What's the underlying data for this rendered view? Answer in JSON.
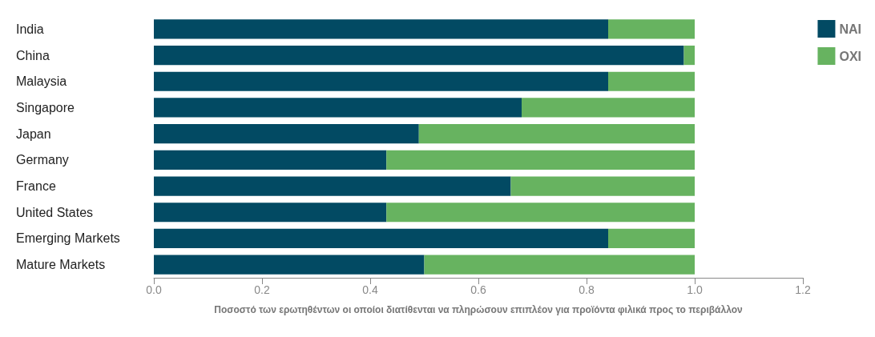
{
  "chart_data": {
    "type": "bar",
    "orientation": "horizontal",
    "stacked": true,
    "xlabel": "Ποσοστό των ερωτηθέντων οι οποίοι διατίθενται να πληρώσουν επιπλέον για προϊόντα φιλικά προς το περιβάλλον",
    "categories": [
      "India",
      "China",
      "Malaysia",
      "Singapore",
      "Japan",
      "Germany",
      "France",
      "United States",
      "Emerging Markets",
      "Mature Markets"
    ],
    "series": [
      {
        "name": "NAI",
        "color": "#024a63",
        "values": [
          0.84,
          0.98,
          0.84,
          0.68,
          0.49,
          0.43,
          0.66,
          0.43,
          0.84,
          0.5
        ]
      },
      {
        "name": "OXI",
        "color": "#67b360",
        "values": [
          0.16,
          0.02,
          0.16,
          0.32,
          0.51,
          0.57,
          0.34,
          0.57,
          0.16,
          0.5
        ]
      }
    ],
    "xlim": [
      0,
      1.2
    ],
    "xticks": [
      {
        "value": 0,
        "label": "0.0"
      },
      {
        "value": 0.2,
        "label": "0.2"
      },
      {
        "value": 0.4,
        "label": "0.4"
      },
      {
        "value": 0.6,
        "label": "0.6"
      },
      {
        "value": 0.8,
        "label": "0.8"
      },
      {
        "value": 1,
        "label": "1.0"
      },
      {
        "value": 1.2,
        "label": "1.2"
      }
    ],
    "grid": false,
    "legend": "top right"
  }
}
